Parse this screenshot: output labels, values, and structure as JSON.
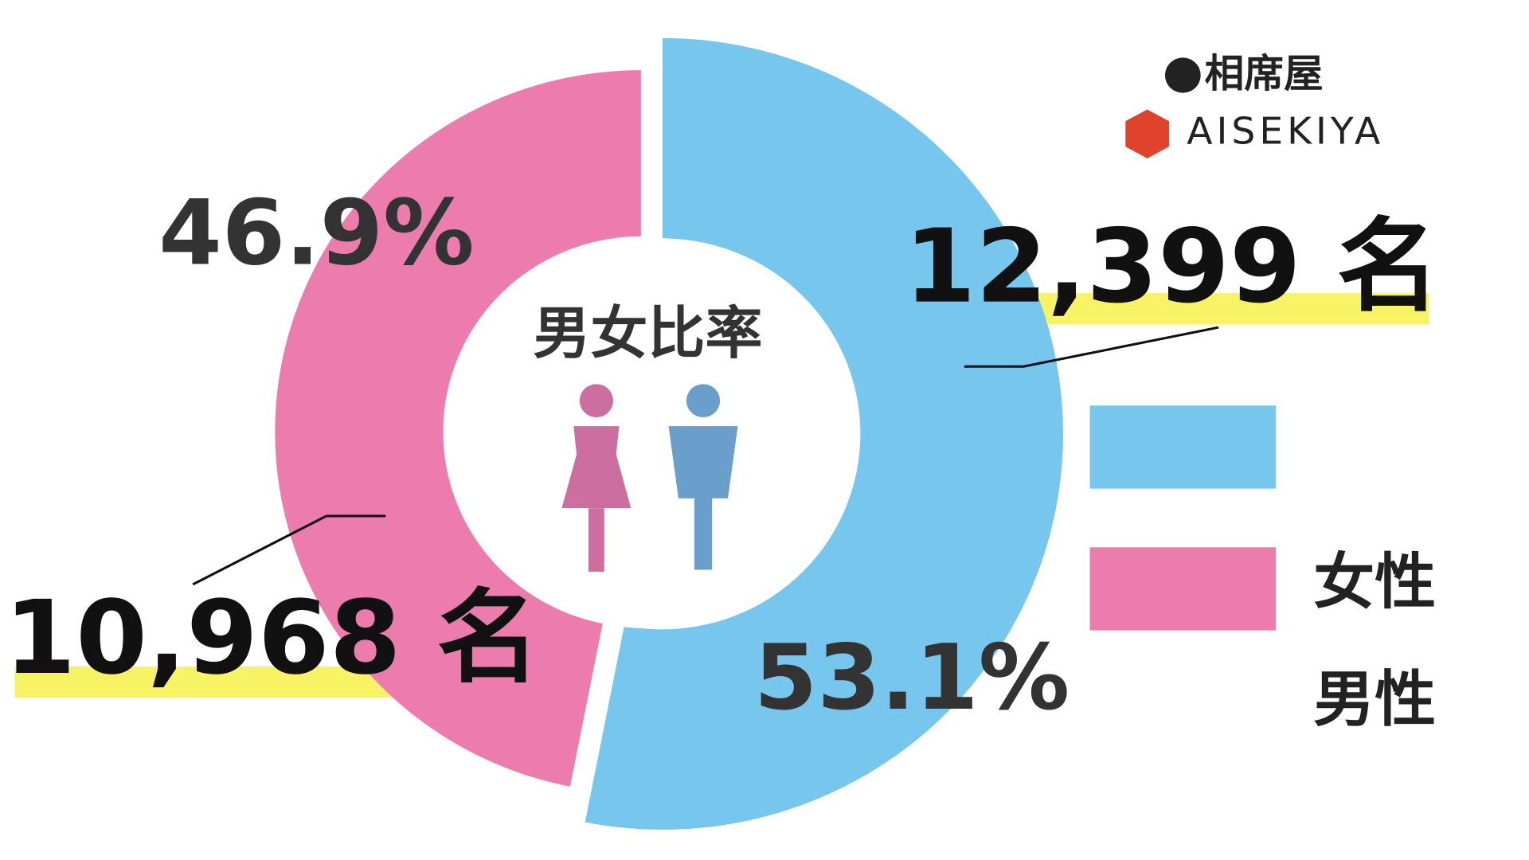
{
  "chart_data": {
    "type": "pie",
    "title": "男女比率",
    "categories": [
      "男性",
      "女性"
    ],
    "values": [
      53.1,
      46.9
    ],
    "value_labels": [
      "53.1%",
      "46.9%"
    ],
    "colors": [
      "#77c6ee",
      "#ec7cae"
    ],
    "annotations": [
      "12,399 名",
      "10,968 名"
    ],
    "legend": [
      "女性",
      "男性"
    ]
  },
  "logo": {
    "mark": "相席屋",
    "name": "AISEKIYA"
  }
}
